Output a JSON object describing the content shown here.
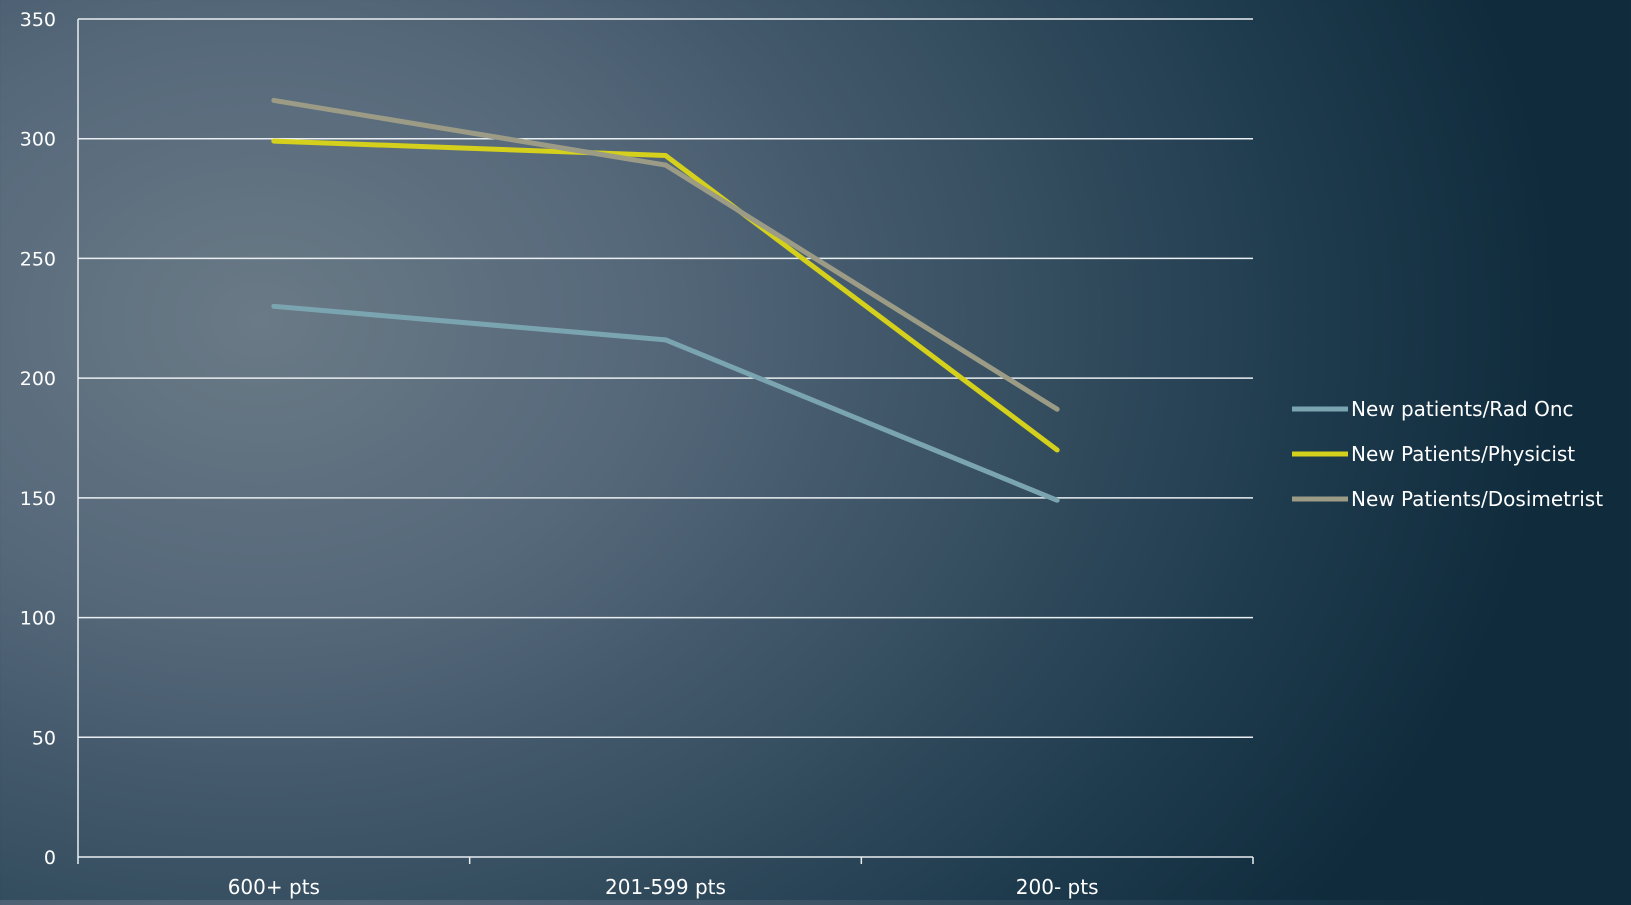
{
  "chart_data": {
    "type": "line",
    "title": "",
    "xlabel": "",
    "ylabel": "",
    "categories": [
      "600+ pts",
      "201-599 pts",
      "200- pts"
    ],
    "ylim": [
      0,
      350
    ],
    "yticks": [
      0,
      50,
      100,
      150,
      200,
      250,
      300,
      350
    ],
    "grid": true,
    "legend_position": "right",
    "series": [
      {
        "name": "New patients/Rad Onc",
        "values": [
          230,
          216,
          149
        ],
        "color": "#7ba4b1"
      },
      {
        "name": "New Patients/Physicist",
        "values": [
          299,
          293,
          170
        ],
        "color": "#d4d01c"
      },
      {
        "name": "New Patients/Dosimetrist",
        "values": [
          316,
          289,
          187
        ],
        "color": "#9c9b86"
      }
    ]
  }
}
